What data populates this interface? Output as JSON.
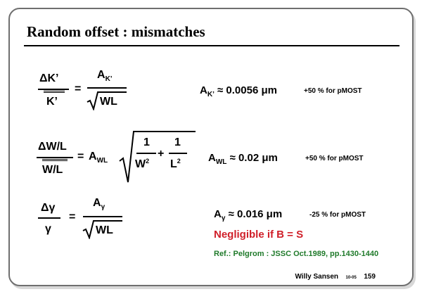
{
  "slide": {
    "title": "Random offset : mismatches",
    "eq1": {
      "lhs_num": "ΔK’",
      "lhs_den": "K’",
      "eq": "=",
      "rhs_num": "A",
      "rhs_num_sub": "K’",
      "rhs_den": "WL",
      "value_label": "A",
      "value_sub": "K’",
      "value": "≈ 0.0056 μm",
      "note": "+50 % for pMOST"
    },
    "eq2": {
      "lhs_num": "ΔW/L",
      "lhs_den": "W/L",
      "eq": "=",
      "rhs": "A",
      "rhs_sub": "WL",
      "t1_num": "1",
      "t1_den": "W",
      "t1_den_sup": "2",
      "plus": "+",
      "t2_num": "1",
      "t2_den": "L",
      "t2_den_sup": "2",
      "value_label": "A",
      "value_sub": "WL",
      "value": "≈ 0.02 μm",
      "note": "+50 % for pMOST"
    },
    "eq3": {
      "lhs_num": "Δγ",
      "lhs_den": "γ",
      "eq": "=",
      "rhs_num": "A",
      "rhs_num_sub": "γ",
      "rhs_den": "WL",
      "value_label": "A",
      "value_sub": "γ",
      "value": "≈ 0.016 μm",
      "note": "-25 % for pMOST"
    },
    "negligible": "Negligible if  B = S",
    "reference": "Ref.: Pelgrom : JSSC Oct.1989, pp.1430-1440",
    "footer": {
      "author": "Willy Sansen",
      "date": "10-05",
      "page": "159"
    },
    "colors": {
      "highlight_red": "#d0202a",
      "reference_green": "#1f7a2a",
      "frame": "#6f6f6f"
    }
  }
}
